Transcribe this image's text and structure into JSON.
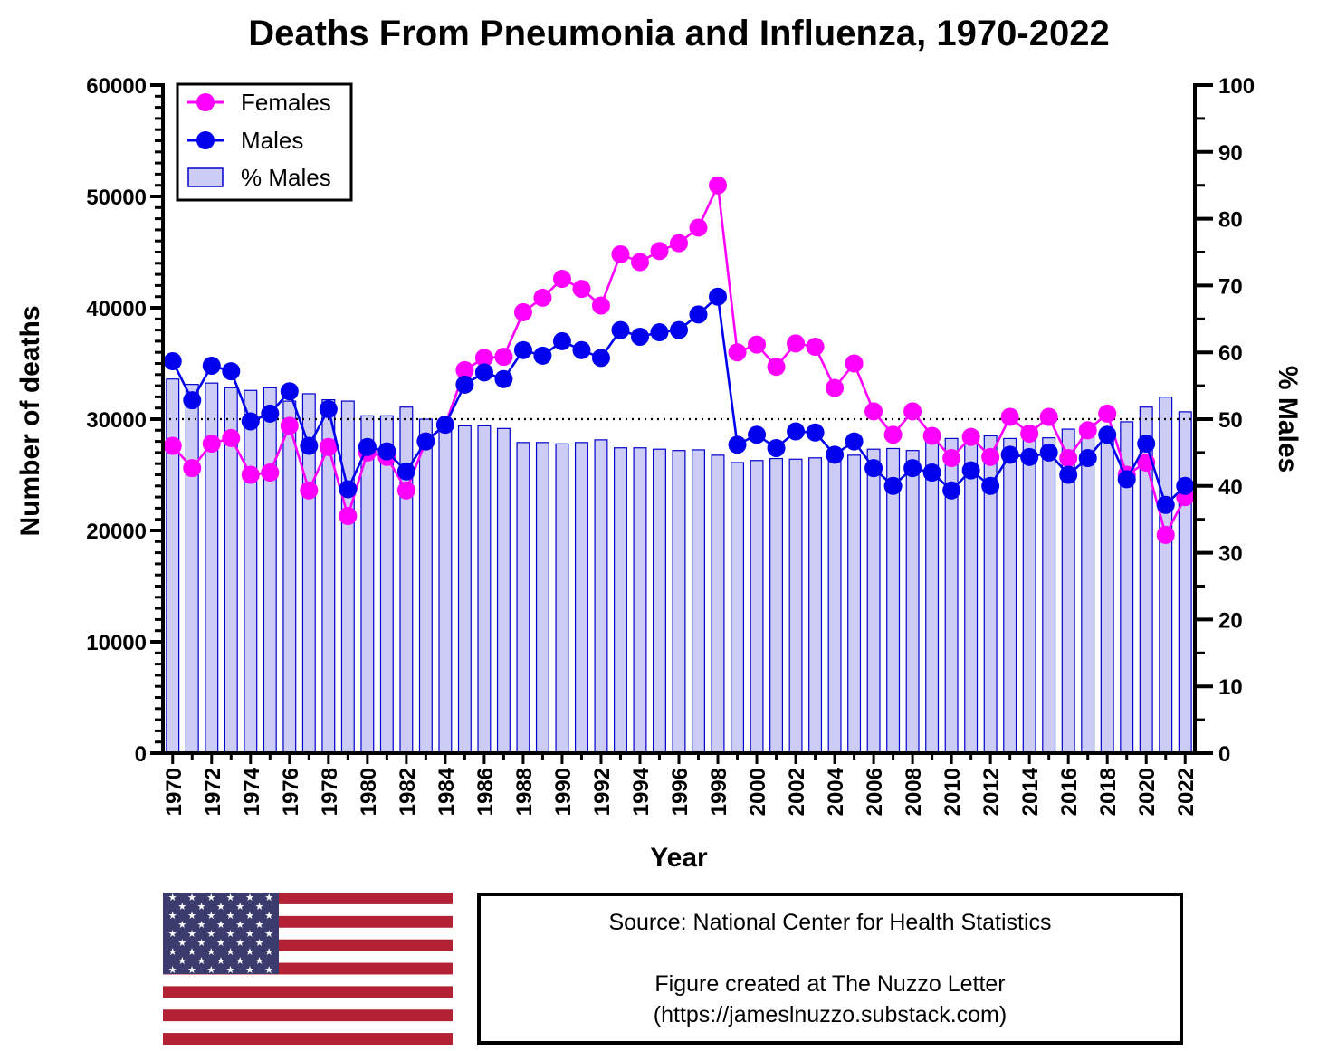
{
  "chart_data": {
    "type": "bar+line",
    "title": "Deaths From Pneumonia and Influenza, 1970-2022",
    "xlabel": "Year",
    "ylabel": "Number of deaths",
    "y2label": "% Males",
    "ylim": [
      0,
      60000
    ],
    "y2lim": [
      0,
      100
    ],
    "y_ticks": [
      "0",
      "10000",
      "20000",
      "30000",
      "40000",
      "50000",
      "60000"
    ],
    "y2_ticks": [
      "0",
      "10",
      "20",
      "30",
      "40",
      "50",
      "60",
      "70",
      "80",
      "90",
      "100"
    ],
    "reference_line": {
      "axis": "y2",
      "value": 50,
      "style": "dotted"
    },
    "legend": {
      "placement": "top-left",
      "entries": [
        "Females",
        "Males",
        "% Males"
      ]
    },
    "years": [
      1970,
      1971,
      1972,
      1973,
      1974,
      1975,
      1976,
      1977,
      1978,
      1979,
      1980,
      1981,
      1982,
      1983,
      1984,
      1985,
      1986,
      1987,
      1988,
      1989,
      1990,
      1991,
      1992,
      1993,
      1994,
      1995,
      1996,
      1997,
      1998,
      1999,
      2000,
      2001,
      2002,
      2003,
      2004,
      2005,
      2006,
      2007,
      2008,
      2009,
      2010,
      2011,
      2012,
      2013,
      2014,
      2015,
      2016,
      2017,
      2018,
      2019,
      2020,
      2021,
      2022
    ],
    "x_tick_labels": [
      "1970",
      "1972",
      "1974",
      "1976",
      "1978",
      "1980",
      "1982",
      "1984",
      "1986",
      "1988",
      "1990",
      "1992",
      "1994",
      "1996",
      "1998",
      "2000",
      "2002",
      "2004",
      "2006",
      "2008",
      "2010",
      "2012",
      "2014",
      "2016",
      "2018",
      "2020",
      "2022"
    ],
    "series": [
      {
        "name": "Females",
        "axis": "y",
        "type": "line",
        "color": "#ff00ff",
        "values": [
          27600,
          25600,
          27800,
          28300,
          25000,
          25200,
          29400,
          23600,
          27500,
          21300,
          27000,
          26600,
          23600,
          28000,
          29500,
          34400,
          35500,
          35600,
          39600,
          40900,
          42600,
          41700,
          40200,
          44800,
          44100,
          45100,
          45800,
          47200,
          51000,
          36000,
          36700,
          34700,
          36800,
          36500,
          32800,
          35000,
          30700,
          28600,
          30700,
          28500,
          26500,
          28400,
          26600,
          30200,
          28700,
          30200,
          26500,
          29000,
          30500,
          25000,
          26100,
          19600,
          23000
        ]
      },
      {
        "name": "Males",
        "axis": "y",
        "type": "line",
        "color": "#0000ee",
        "values": [
          35200,
          31700,
          34800,
          34300,
          29800,
          30500,
          32500,
          27600,
          30900,
          23700,
          27500,
          27100,
          25300,
          28000,
          29500,
          33100,
          34200,
          33600,
          36200,
          35700,
          37000,
          36200,
          35500,
          38000,
          37400,
          37800,
          38000,
          39400,
          41000,
          27700,
          28600,
          27400,
          28900,
          28800,
          26800,
          28000,
          25600,
          24000,
          25600,
          25200,
          23600,
          25400,
          24000,
          26800,
          26600,
          27000,
          25000,
          26500,
          28600,
          24600,
          27800,
          22300,
          24000
        ]
      },
      {
        "name": "% Males",
        "axis": "y2",
        "type": "bar",
        "color": "#ccccf5",
        "edge": "#0000cc",
        "values": [
          56.0,
          55.2,
          55.4,
          54.7,
          54.3,
          54.7,
          52.7,
          53.8,
          52.9,
          52.7,
          50.5,
          50.5,
          51.8,
          50.0,
          50.0,
          49.0,
          49.0,
          48.6,
          46.5,
          46.5,
          46.3,
          46.5,
          46.9,
          45.7,
          45.7,
          45.5,
          45.3,
          45.4,
          44.6,
          43.5,
          43.8,
          44.1,
          44.0,
          44.2,
          45.0,
          44.6,
          45.5,
          45.6,
          45.3,
          46.9,
          47.1,
          47.2,
          47.5,
          47.1,
          48.0,
          47.2,
          48.5,
          47.7,
          48.2,
          49.6,
          51.8,
          53.3,
          51.1
        ]
      }
    ]
  },
  "source_box": {
    "source": "Source: National Center for Health Statistics",
    "credit": "Figure created at The Nuzzo Letter",
    "url": "(https://jameslnuzzo.substack.com)"
  },
  "flag": {
    "red": "#b22234",
    "white": "#ffffff",
    "blue": "#3c3b6e"
  }
}
